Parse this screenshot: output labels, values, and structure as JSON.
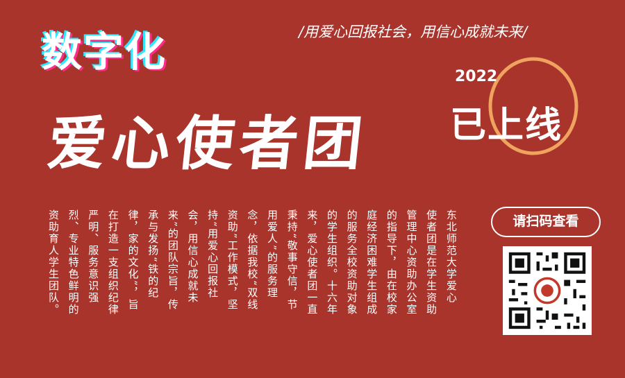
{
  "header": {
    "digital": "数字化",
    "slogan": "/用爱心回报社会，用信心成就未来/",
    "title": "爱心使者团",
    "year": "2022",
    "online": "已上线"
  },
  "body_columns": [
    "东北师范大学爱心",
    "使者团是在学生资助",
    "管理中心资助办公室",
    "的指导下，由在校家",
    "庭经济困难学生组成",
    "的服务全校资助对象",
    "的学生组织。十六年",
    "来，爱心使者团一直",
    "秉持“敬事守信，节",
    "用爱人”的服务理",
    "念，依据我校“双线",
    "资助”工作模式，坚",
    "持“用爱心回报社",
    "会，用信心成就未",
    "来”的团队宗旨，传",
    "承与发扬“铁的纪",
    "律，家的文化”，旨",
    "在打造一支组织纪律",
    "严明、服务意识强",
    "烈、专业特色鲜明的",
    "资助育人学生团队。"
  ],
  "scan_button": "请扫码查看",
  "colors": {
    "background": "#a8342c",
    "accent_ring": "#f0a35e",
    "cyan": "#2fe6ff",
    "magenta": "#ff2d8a"
  }
}
